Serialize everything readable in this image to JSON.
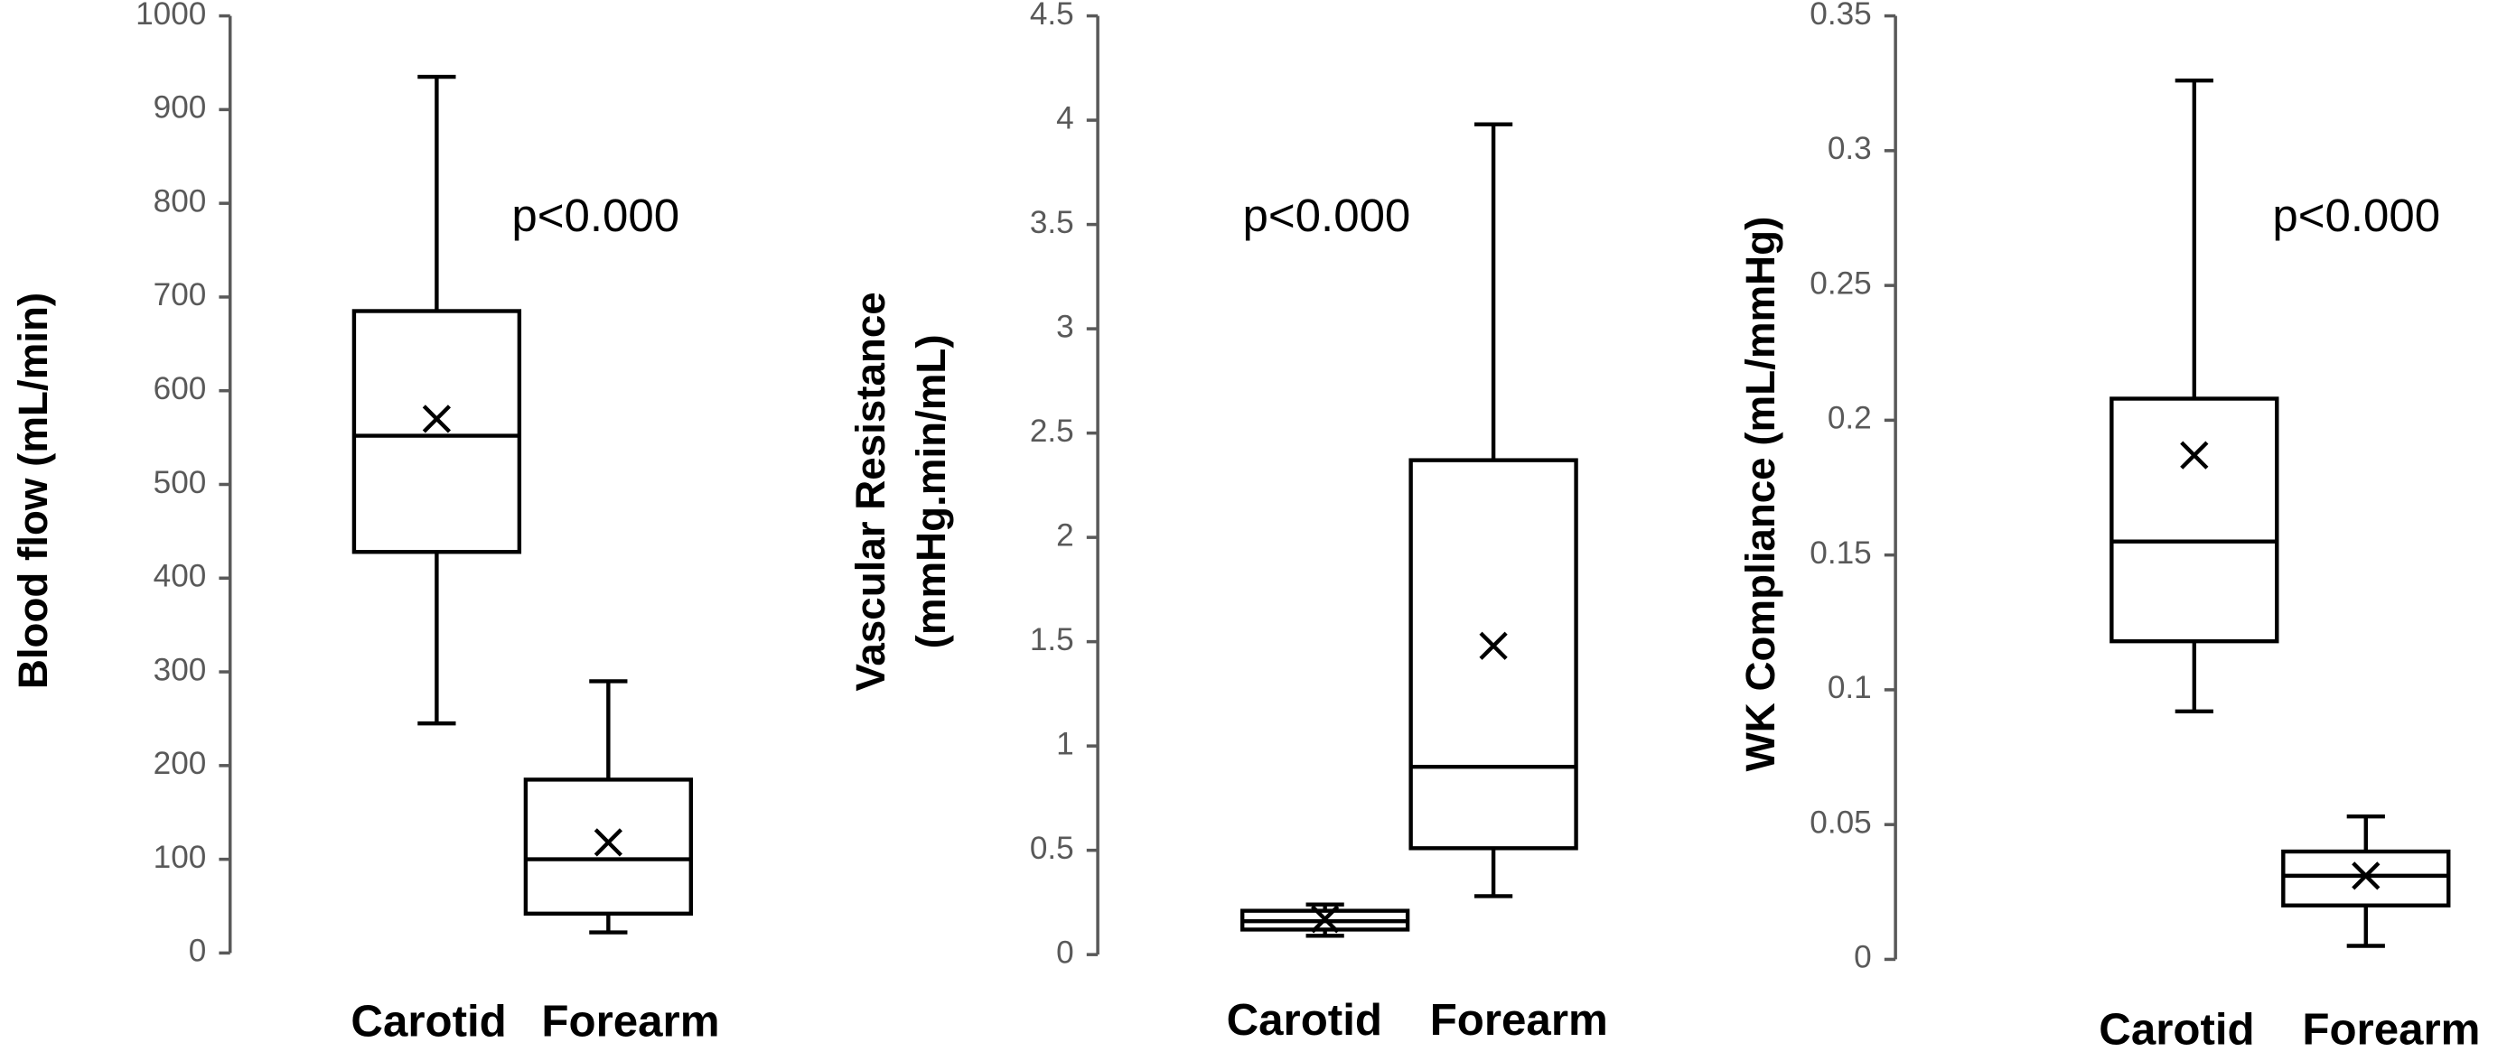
{
  "chart_data": [
    {
      "type": "box",
      "y_label": [
        "Blood flow (mL/min)"
      ],
      "annotation": "p<0.000",
      "categories": [
        "Carotid",
        "Forearm"
      ],
      "boxes": [
        {
          "min": 245,
          "q1": 428,
          "median": 552,
          "q3": 685,
          "max": 935,
          "mean": 570
        },
        {
          "min": 22,
          "q1": 42,
          "median": 100,
          "q3": 185,
          "max": 290,
          "mean": 118
        }
      ],
      "ylim": [
        0,
        1000
      ],
      "yticks": [
        0,
        100,
        200,
        300,
        400,
        500,
        600,
        700,
        800,
        900,
        1000
      ]
    },
    {
      "type": "box",
      "y_label": [
        "Vascular Resistance",
        "(mmHg.min/mL)"
      ],
      "annotation": "p<0.000",
      "categories": [
        "Carotid",
        "Forearm"
      ],
      "boxes": [
        {
          "min": 0.09,
          "q1": 0.12,
          "median": 0.16,
          "q3": 0.21,
          "max": 0.24,
          "mean": 0.17
        },
        {
          "min": 0.28,
          "q1": 0.51,
          "median": 0.9,
          "q3": 2.37,
          "max": 3.98,
          "mean": 1.48
        }
      ],
      "ylim": [
        0,
        4.5
      ],
      "yticks": [
        0,
        0.5,
        1,
        1.5,
        2,
        2.5,
        3,
        3.5,
        4,
        4.5
      ]
    },
    {
      "type": "box",
      "y_label": [
        "WK Compliance (mL/mmHg)"
      ],
      "annotation": "p<0.000",
      "categories": [
        "Carotid",
        "Forearm"
      ],
      "boxes": [
        {
          "min": 0.092,
          "q1": 0.118,
          "median": 0.155,
          "q3": 0.208,
          "max": 0.326,
          "mean": 0.187
        },
        {
          "min": 0.005,
          "q1": 0.02,
          "median": 0.031,
          "q3": 0.04,
          "max": 0.053,
          "mean": 0.031
        }
      ],
      "ylim": [
        0,
        0.35
      ],
      "yticks": [
        0,
        0.05,
        0.1,
        0.15,
        0.2,
        0.25,
        0.3,
        0.35
      ]
    }
  ]
}
